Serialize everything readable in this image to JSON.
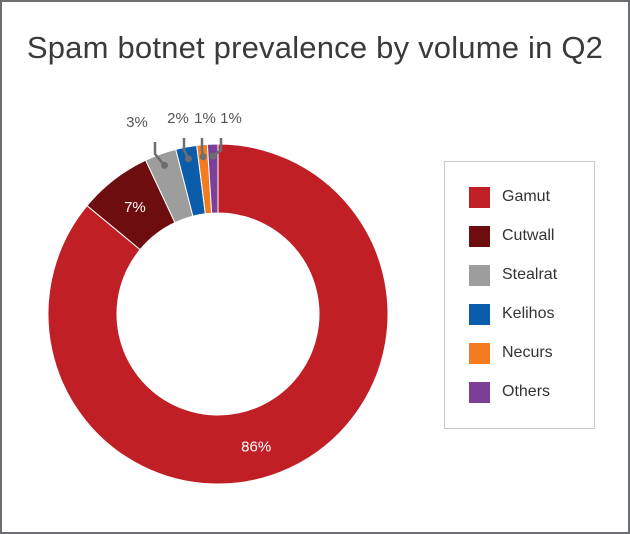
{
  "chart_data": {
    "type": "pie",
    "style": "donut",
    "title": "Spam botnet prevalence by volume in Q2",
    "slices": [
      {
        "label": "Gamut",
        "value": 86,
        "display": "86%",
        "color": "#c01f26"
      },
      {
        "label": "Cutwall",
        "value": 7,
        "display": "7%",
        "color": "#6e0d10"
      },
      {
        "label": "Stealrat",
        "value": 3,
        "display": "3%",
        "color": "#9d9d9d"
      },
      {
        "label": "Kelihos",
        "value": 2,
        "display": "2%",
        "color": "#0b5cab"
      },
      {
        "label": "Necurs",
        "value": 1,
        "display": "1%",
        "color": "#f47b20"
      },
      {
        "label": "Others",
        "value": 1,
        "display": "1%",
        "color": "#7b3f98"
      }
    ],
    "legend_position": "right"
  }
}
